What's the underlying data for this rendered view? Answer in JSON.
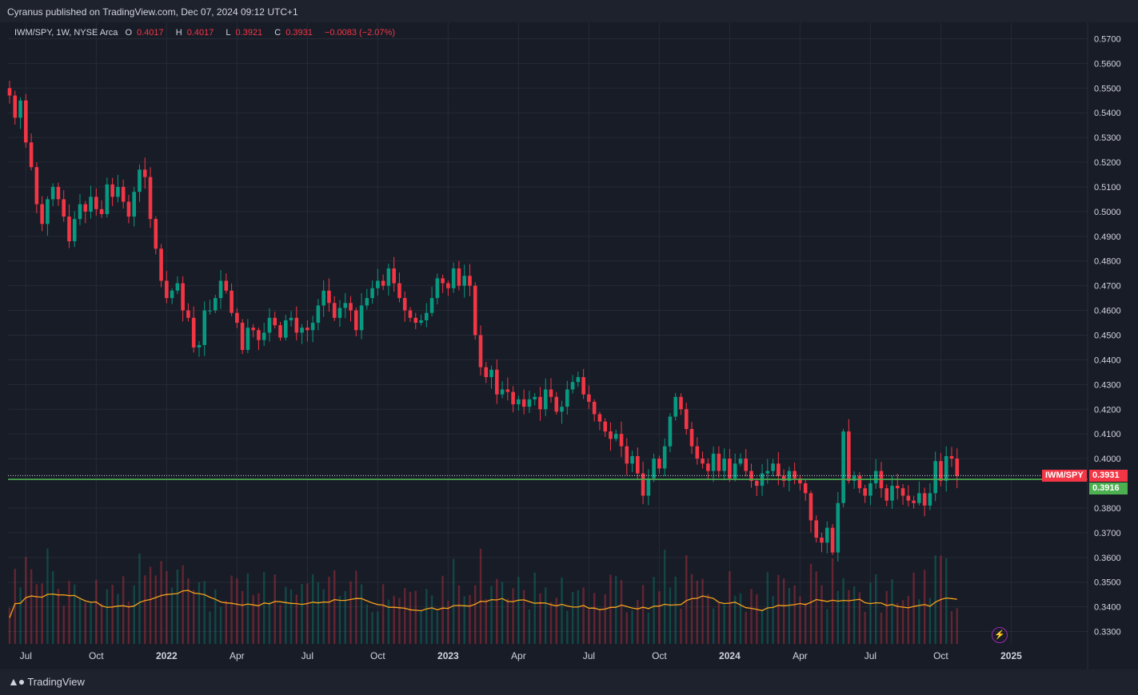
{
  "header": {
    "publisher": "Cyranus published on TradingView.com, Dec 07, 2024 09:12 UTC+1"
  },
  "legend": {
    "symbol": "IWM/SPY, 1W, NYSE Arca",
    "o_label": "O",
    "o_value": "0.4017",
    "h_label": "H",
    "h_value": "0.4017",
    "l_label": "L",
    "l_value": "0.3921",
    "c_label": "C",
    "c_value": "0.3931",
    "change": "−0.0083 (−2.07%)"
  },
  "price_tags": {
    "symbol_label": "IWM/SPY",
    "last_price": "0.3931",
    "line_price": "0.3916"
  },
  "footer": {
    "brand": "TradingView"
  },
  "colors": {
    "up": "#089981",
    "down": "#f23645",
    "ma": "#f7a21b",
    "hline": "#4caf50",
    "background": "#181c27",
    "grid": "#262a36"
  },
  "chart_data": {
    "type": "candlestick",
    "symbol": "IWM/SPY",
    "interval": "1W",
    "yaxis": {
      "min": 0.325,
      "max": 0.575,
      "ticks": [
        "0.5700",
        "0.5600",
        "0.5500",
        "0.5400",
        "0.5300",
        "0.5200",
        "0.5100",
        "0.5000",
        "0.4900",
        "0.4800",
        "0.4700",
        "0.4600",
        "0.4500",
        "0.4400",
        "0.4300",
        "0.4200",
        "0.4100",
        "0.4000",
        "0.3800",
        "0.3700",
        "0.3600",
        "0.3500",
        "0.3400",
        "0.3300"
      ]
    },
    "xaxis": {
      "ticks": [
        {
          "label": "Jul",
          "week": 3,
          "bold": false
        },
        {
          "label": "Oct",
          "week": 16,
          "bold": false
        },
        {
          "label": "2022",
          "week": 29,
          "bold": true
        },
        {
          "label": "Apr",
          "week": 42,
          "bold": false
        },
        {
          "label": "Jul",
          "week": 55,
          "bold": false
        },
        {
          "label": "Oct",
          "week": 68,
          "bold": false
        },
        {
          "label": "2023",
          "week": 81,
          "bold": true
        },
        {
          "label": "Apr",
          "week": 94,
          "bold": false
        },
        {
          "label": "Jul",
          "week": 107,
          "bold": false
        },
        {
          "label": "Oct",
          "week": 120,
          "bold": false
        },
        {
          "label": "2024",
          "week": 133,
          "bold": true
        },
        {
          "label": "Apr",
          "week": 146,
          "bold": false
        },
        {
          "label": "Jul",
          "week": 159,
          "bold": false
        },
        {
          "label": "Oct",
          "week": 172,
          "bold": false
        },
        {
          "label": "2025",
          "week": 185,
          "bold": true
        }
      ]
    },
    "horizontal_line": 0.3916,
    "last_close": 0.3931,
    "closes": [
      0.547,
      0.538,
      0.545,
      0.528,
      0.518,
      0.503,
      0.495,
      0.505,
      0.51,
      0.505,
      0.498,
      0.488,
      0.497,
      0.503,
      0.5,
      0.506,
      0.501,
      0.499,
      0.511,
      0.506,
      0.51,
      0.504,
      0.498,
      0.508,
      0.517,
      0.514,
      0.497,
      0.485,
      0.472,
      0.465,
      0.468,
      0.471,
      0.46,
      0.457,
      0.445,
      0.446,
      0.46,
      0.46,
      0.465,
      0.472,
      0.468,
      0.459,
      0.455,
      0.444,
      0.453,
      0.452,
      0.448,
      0.451,
      0.457,
      0.454,
      0.449,
      0.456,
      0.457,
      0.451,
      0.453,
      0.452,
      0.455,
      0.462,
      0.468,
      0.463,
      0.457,
      0.461,
      0.463,
      0.46,
      0.452,
      0.462,
      0.465,
      0.469,
      0.472,
      0.47,
      0.477,
      0.471,
      0.465,
      0.46,
      0.457,
      0.455,
      0.456,
      0.459,
      0.465,
      0.473,
      0.471,
      0.469,
      0.477,
      0.47,
      0.474,
      0.47,
      0.45,
      0.437,
      0.433,
      0.436,
      0.426,
      0.428,
      0.427,
      0.422,
      0.424,
      0.421,
      0.424,
      0.425,
      0.42,
      0.428,
      0.425,
      0.419,
      0.421,
      0.428,
      0.431,
      0.433,
      0.426,
      0.423,
      0.418,
      0.415,
      0.411,
      0.408,
      0.41,
      0.405,
      0.398,
      0.401,
      0.394,
      0.385,
      0.392,
      0.4,
      0.396,
      0.405,
      0.417,
      0.425,
      0.42,
      0.412,
      0.405,
      0.4,
      0.398,
      0.395,
      0.402,
      0.395,
      0.4,
      0.392,
      0.398,
      0.4,
      0.395,
      0.391,
      0.389,
      0.394,
      0.395,
      0.398,
      0.393,
      0.391,
      0.395,
      0.392,
      0.39,
      0.386,
      0.375,
      0.368,
      0.366,
      0.372,
      0.362,
      0.382,
      0.411,
      0.391,
      0.393,
      0.388,
      0.385,
      0.39,
      0.395,
      0.388,
      0.383,
      0.389,
      0.388,
      0.385,
      0.383,
      0.382,
      0.386,
      0.381,
      0.386,
      0.399,
      0.391,
      0.401,
      0.4,
      0.393
    ]
  }
}
